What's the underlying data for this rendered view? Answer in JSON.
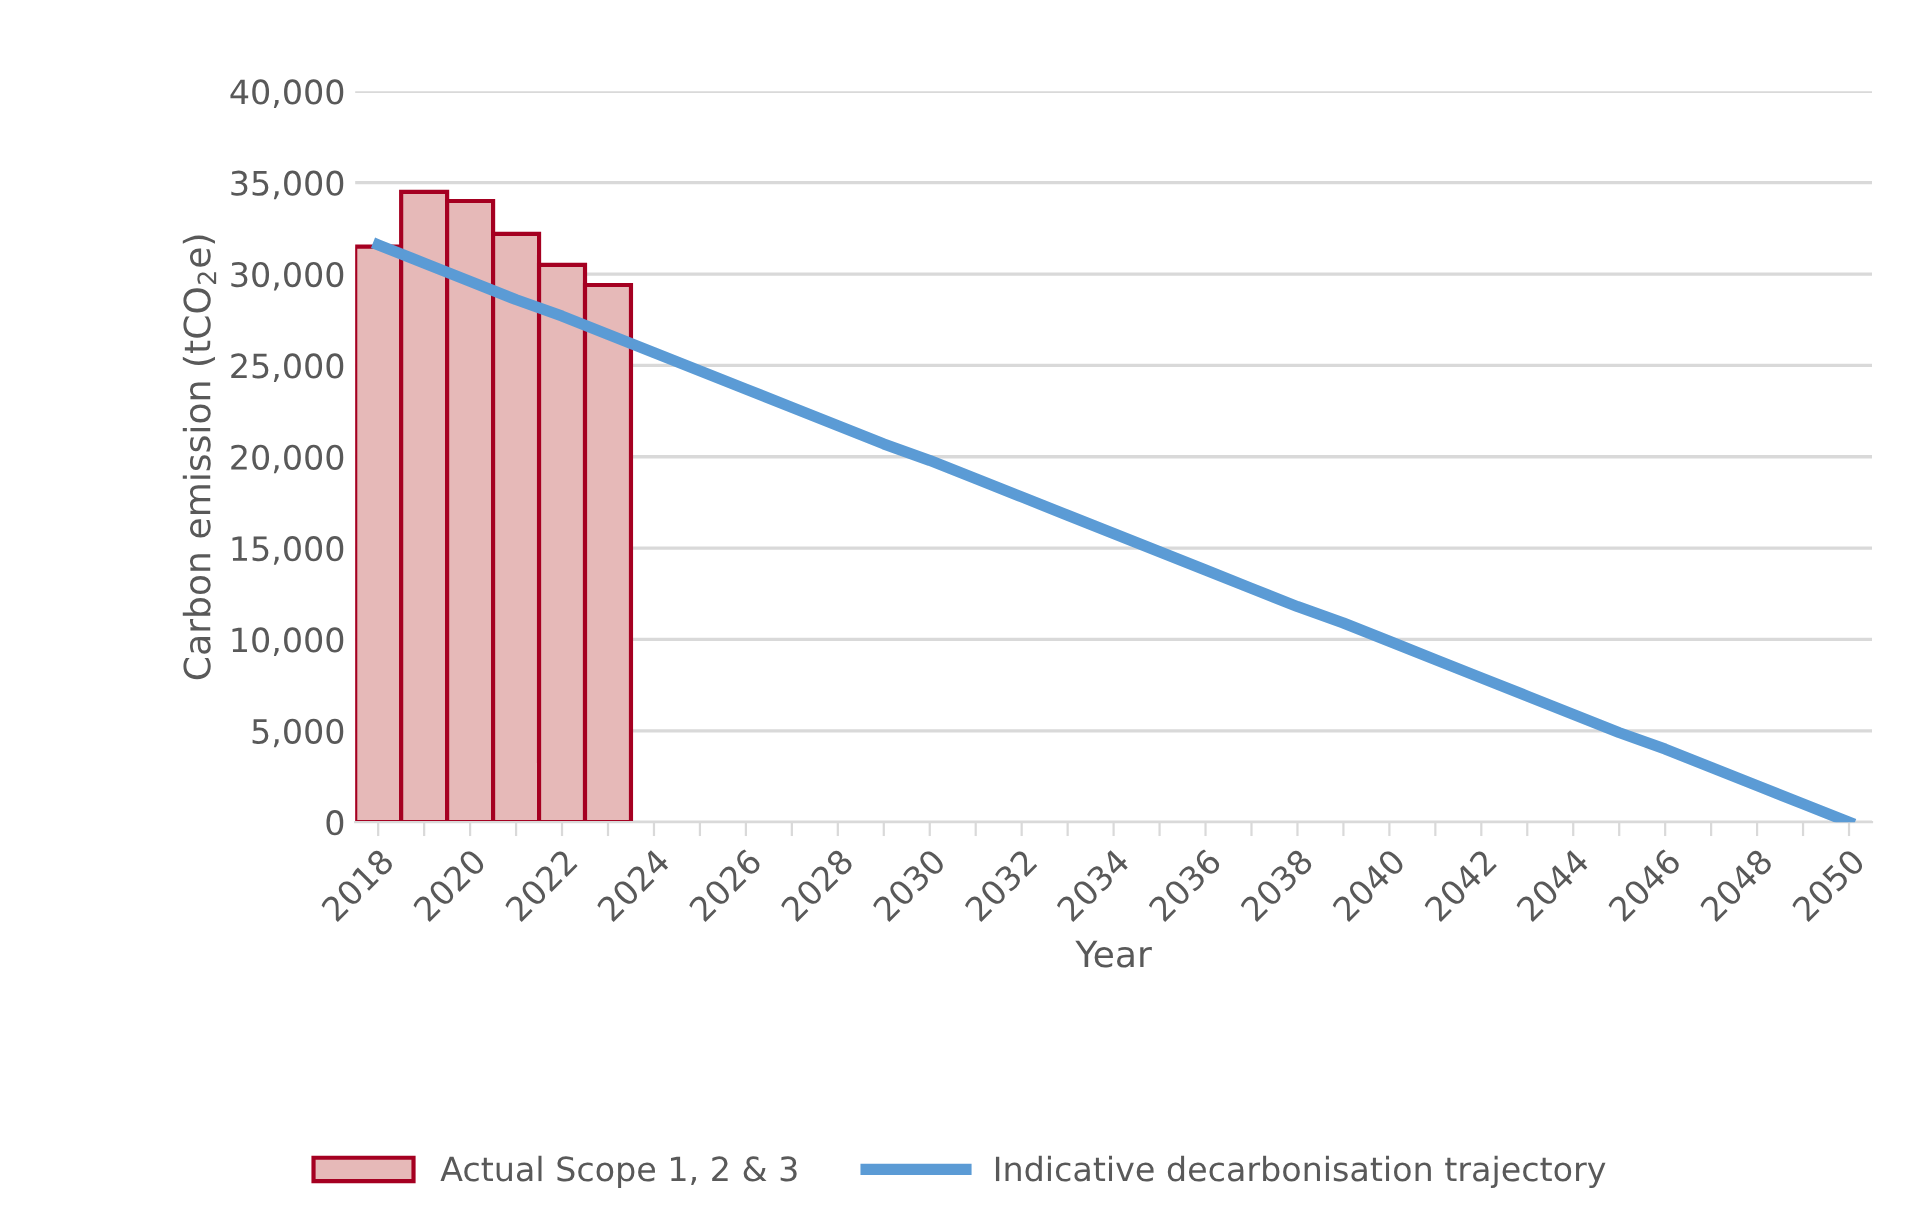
{
  "chart_data": {
    "type": "bar",
    "xlabel": "Year",
    "ylabel": "Carbon emission (tCO$_{2}$e)",
    "categories": [
      "2018",
      null,
      "2020",
      null,
      "2022",
      null,
      "2024",
      null,
      "2026",
      null,
      "2028",
      null,
      "2030",
      null,
      "2032",
      null,
      "2034",
      null,
      "2036",
      null,
      "2038",
      null,
      "2040",
      null,
      "2042",
      null,
      "2044",
      null,
      "2046",
      null,
      "2048",
      null,
      "2050"
    ],
    "series": [
      {
        "name": "Actual Scope 1, 2 & 3",
        "color": "#e6b9b8",
        "values": [
          31500,
          34500,
          34000,
          32200,
          30500,
          29400,
          null,
          null,
          null,
          null,
          null,
          null,
          null,
          null,
          null,
          null,
          null,
          null,
          null,
          null,
          null,
          null,
          null,
          null,
          null,
          null,
          null,
          null,
          null,
          null,
          null,
          null,
          null
        ]
      },
      {
        "name": "Indicative decarbonisation trajectory",
        "type": "line",
        "color": "#5b9bd5",
        "values": [
          31600,
          30600,
          29600,
          28600,
          27700,
          26700,
          25700,
          24700,
          23700,
          22700,
          21700,
          20700,
          19800,
          18800,
          17800,
          16800,
          15800,
          14800,
          13800,
          12800,
          11800,
          10900,
          9900,
          8900,
          7900,
          6900,
          5900,
          4900,
          4000,
          3000,
          2000,
          1000,
          0
        ]
      }
    ],
    "ylim": [
      0,
      40000
    ],
    "yticks": [
      {
        "value": 0,
        "label": "0"
      },
      {
        "value": 5000,
        "label": "5,000"
      },
      {
        "value": 10000,
        "label": "10,000"
      },
      {
        "value": 15000,
        "label": "15,000"
      },
      {
        "value": 20000,
        "label": "20,000"
      },
      {
        "value": 25000,
        "label": "25,000"
      },
      {
        "value": 30000,
        "label": "30,000"
      },
      {
        "value": 35000,
        "label": "35,000"
      },
      {
        "value": 40000,
        "label": "40,000"
      }
    ],
    "grid": "y",
    "legend": "bottom",
    "marker": "none",
    "line_style": "solid"
  }
}
